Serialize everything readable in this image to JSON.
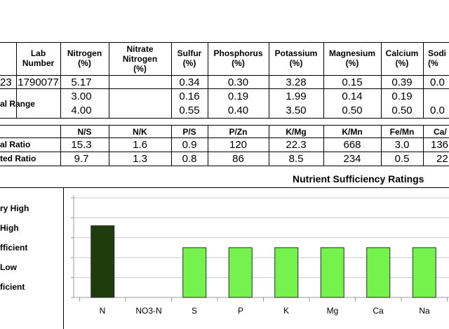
{
  "table1": {
    "headers": {
      "date": "",
      "lab": [
        "Lab",
        "Number"
      ],
      "nitrogen": [
        "Nitrogen",
        "(%)"
      ],
      "nitrate": [
        "Nitrate",
        "Nitrogen",
        "(%)"
      ],
      "sulfur": [
        "Sulfur",
        "(%)"
      ],
      "phosphorus": [
        "Phosphorus",
        "(%)"
      ],
      "potassium": [
        "Potassium",
        "(%)"
      ],
      "magnesium": [
        "Magnesium",
        "(%)"
      ],
      "calcium": [
        "Calcium",
        "(%)"
      ],
      "sodium": [
        "Sodi",
        "(%"
      ]
    },
    "sample": {
      "date": "23",
      "lab": "1790077",
      "nitrogen": "5.17",
      "nitrate": "",
      "sulfur": "0.34",
      "phosphorus": "0.30",
      "potassium": "3.28",
      "magnesium": "0.15",
      "calcium": "0.39",
      "sodium": "0.0"
    },
    "range_label": "al Range",
    "range_low": {
      "nitrogen": "3.00",
      "sulfur": "0.16",
      "phosphorus": "0.19",
      "potassium": "1.99",
      "magnesium": "0.14",
      "calcium": "0.19",
      "sodium": ""
    },
    "range_high": {
      "nitrogen": "4.00",
      "sulfur": "0.55",
      "phosphorus": "0.40",
      "potassium": "3.50",
      "magnesium": "0.50",
      "calcium": "0.50",
      "sodium": "0.0"
    }
  },
  "table2": {
    "headers": [
      "N/S",
      "N/K",
      "P/S",
      "P/Zn",
      "K/Mg",
      "K/Mn",
      "Fe/Mn",
      "Ca/"
    ],
    "rows": [
      {
        "label": "al Ratio",
        "values": [
          "15.3",
          "1.6",
          "0.9",
          "120",
          "22.3",
          "668",
          "3.0",
          "136"
        ]
      },
      {
        "label": "ted Ratio",
        "values": [
          "9.7",
          "1.3",
          "0.8",
          "86",
          "8.5",
          "234",
          "0.5",
          "22"
        ]
      }
    ]
  },
  "chart_data": {
    "type": "bar",
    "title": "Nutrient Sufficiency Ratings",
    "categories": [
      "N",
      "NO3-N",
      "S",
      "P",
      "K",
      "Mg",
      "Ca",
      "Na"
    ],
    "values": [
      3.6,
      null,
      2.5,
      2.5,
      2.5,
      2.5,
      2.5,
      2.5
    ],
    "y_levels": [
      "ficient",
      "Low",
      "fficient",
      "High",
      "ry High"
    ],
    "ylim": [
      0,
      5
    ],
    "colors": {
      "high": "#1f3d0c",
      "sufficient": "#76f24e"
    },
    "bar_color_by_category": [
      "high",
      "none",
      "sufficient",
      "sufficient",
      "sufficient",
      "sufficient",
      "sufficient",
      "sufficient"
    ],
    "grid": true
  }
}
